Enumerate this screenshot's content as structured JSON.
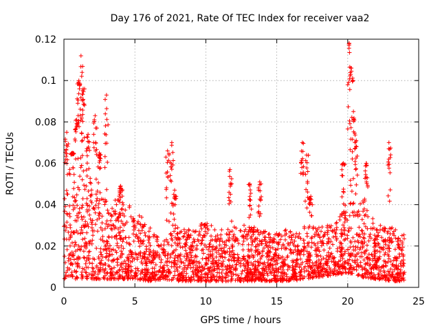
{
  "chart_data": {
    "type": "scatter",
    "title": "Day 176 of 2021, Rate Of TEC Index for receiver vaa2",
    "xlabel": "GPS time / hours",
    "ylabel": "ROTI / TECUs",
    "xlim": [
      0,
      25
    ],
    "ylim": [
      0,
      0.12
    ],
    "xticks": [
      0,
      5,
      10,
      15,
      20,
      25
    ],
    "xtick_labels": [
      "0",
      "5",
      "10",
      "15",
      "20",
      "25"
    ],
    "yticks": [
      0,
      0.02,
      0.04,
      0.06,
      0.08,
      0.1,
      0.12
    ],
    "ytick_labels": [
      "0",
      "0.02",
      "0.04",
      "0.06",
      "0.08",
      "0.1",
      "0.12"
    ],
    "grid": true,
    "marker": "+",
    "color": "#ff0000",
    "series": [
      {
        "name": "ROTI",
        "envelope_note": "approximate per-hour envelope of the dense point cloud",
        "hourly_envelope": [
          {
            "hour": 0,
            "low": 0.004,
            "high": 0.055
          },
          {
            "hour": 1,
            "low": 0.004,
            "high": 0.07
          },
          {
            "hour": 2,
            "low": 0.004,
            "high": 0.05
          },
          {
            "hour": 3,
            "low": 0.004,
            "high": 0.045
          },
          {
            "hour": 4,
            "low": 0.004,
            "high": 0.042
          },
          {
            "hour": 5,
            "low": 0.004,
            "high": 0.038
          },
          {
            "hour": 6,
            "low": 0.003,
            "high": 0.03
          },
          {
            "hour": 7,
            "low": 0.004,
            "high": 0.022
          },
          {
            "hour": 8,
            "low": 0.003,
            "high": 0.03
          },
          {
            "hour": 9,
            "low": 0.003,
            "high": 0.028
          },
          {
            "hour": 10,
            "low": 0.003,
            "high": 0.032
          },
          {
            "hour": 11,
            "low": 0.003,
            "high": 0.028
          },
          {
            "hour": 12,
            "low": 0.003,
            "high": 0.03
          },
          {
            "hour": 13,
            "low": 0.003,
            "high": 0.03
          },
          {
            "hour": 14,
            "low": 0.003,
            "high": 0.028
          },
          {
            "hour": 15,
            "low": 0.003,
            "high": 0.026
          },
          {
            "hour": 16,
            "low": 0.003,
            "high": 0.03
          },
          {
            "hour": 17,
            "low": 0.004,
            "high": 0.03
          },
          {
            "hour": 18,
            "low": 0.005,
            "high": 0.03
          },
          {
            "hour": 19,
            "low": 0.006,
            "high": 0.03
          },
          {
            "hour": 20,
            "low": 0.007,
            "high": 0.04
          },
          {
            "hour": 21,
            "low": 0.005,
            "high": 0.045
          },
          {
            "hour": 22,
            "low": 0.004,
            "high": 0.03
          },
          {
            "hour": 23,
            "low": 0.003,
            "high": 0.03
          },
          {
            "hour": 24,
            "low": 0.003,
            "high": 0.026
          }
        ],
        "spikes": [
          {
            "x": 0.2,
            "y": 0.075
          },
          {
            "x": 0.6,
            "y": 0.065
          },
          {
            "x": 0.9,
            "y": 0.081
          },
          {
            "x": 1.05,
            "y": 0.1
          },
          {
            "x": 1.2,
            "y": 0.112
          },
          {
            "x": 1.35,
            "y": 0.096
          },
          {
            "x": 1.7,
            "y": 0.074
          },
          {
            "x": 2.2,
            "y": 0.083
          },
          {
            "x": 2.5,
            "y": 0.065
          },
          {
            "x": 3.0,
            "y": 0.093
          },
          {
            "x": 4.0,
            "y": 0.049
          },
          {
            "x": 7.3,
            "y": 0.066
          },
          {
            "x": 7.6,
            "y": 0.07
          },
          {
            "x": 7.8,
            "y": 0.047
          },
          {
            "x": 11.7,
            "y": 0.057
          },
          {
            "x": 13.1,
            "y": 0.05
          },
          {
            "x": 13.8,
            "y": 0.051
          },
          {
            "x": 16.8,
            "y": 0.07
          },
          {
            "x": 17.1,
            "y": 0.064
          },
          {
            "x": 17.4,
            "y": 0.044
          },
          {
            "x": 19.7,
            "y": 0.06
          },
          {
            "x": 20.1,
            "y": 0.118
          },
          {
            "x": 20.25,
            "y": 0.106
          },
          {
            "x": 20.4,
            "y": 0.085
          },
          {
            "x": 20.6,
            "y": 0.071
          },
          {
            "x": 21.3,
            "y": 0.06
          },
          {
            "x": 22.9,
            "y": 0.07
          }
        ]
      }
    ]
  }
}
